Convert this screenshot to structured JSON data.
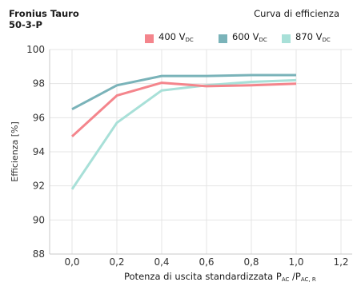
{
  "header": {
    "title_line1": "Fronius Tauro",
    "title_line2": "50-3-P",
    "subtitle": "Curva di efficienza"
  },
  "colors": {
    "s400": "#f4858c",
    "s600": "#7ab3b9",
    "s870": "#a8e0d8",
    "grid": "#e4e4e4",
    "axis": "#c8c8c8"
  },
  "chart_data": {
    "type": "line",
    "title": "Curva di efficienza",
    "ylabel": "Efficienza [%]",
    "xlabel": "Potenza di uscita standardizzata P_AC / P_AC,R",
    "xlim": [
      -0.1,
      1.25
    ],
    "ylim": [
      88,
      100
    ],
    "x_ticks": [
      "0,0",
      "0,2",
      "0,4",
      "0,6",
      "0,8",
      "1,0",
      "1,2"
    ],
    "x_tick_values": [
      0.0,
      0.2,
      0.4,
      0.6,
      0.8,
      1.0,
      1.2
    ],
    "y_ticks": [
      "100",
      "98",
      "96",
      "94",
      "92",
      "90",
      "88"
    ],
    "y_tick_values": [
      100,
      98,
      96,
      94,
      92,
      90,
      88
    ],
    "grid": true,
    "legend_position": "top-right",
    "series": [
      {
        "name": "400 V",
        "name_sub": "DC",
        "color": "#f4858c",
        "points": [
          [
            0.0,
            94.9
          ],
          [
            0.2,
            97.3
          ],
          [
            0.4,
            98.05
          ],
          [
            0.6,
            97.85
          ],
          [
            0.8,
            97.9
          ],
          [
            1.0,
            98.0
          ]
        ]
      },
      {
        "name": "600 V",
        "name_sub": "DC",
        "color": "#7ab3b9",
        "points": [
          [
            0.0,
            96.5
          ],
          [
            0.2,
            97.9
          ],
          [
            0.4,
            98.45
          ],
          [
            0.6,
            98.45
          ],
          [
            0.8,
            98.5
          ],
          [
            1.0,
            98.5
          ]
        ]
      },
      {
        "name": "870 V",
        "name_sub": "DC",
        "color": "#a8e0d8",
        "points": [
          [
            0.0,
            91.8
          ],
          [
            0.2,
            95.7
          ],
          [
            0.4,
            97.6
          ],
          [
            0.6,
            97.9
          ],
          [
            0.8,
            98.1
          ],
          [
            1.0,
            98.2
          ]
        ]
      }
    ]
  },
  "xlabel_parts": {
    "main": "Potenza di uscita standardizzata P",
    "sub1": "AC",
    "sep": " /P",
    "sub2": "AC, R"
  }
}
